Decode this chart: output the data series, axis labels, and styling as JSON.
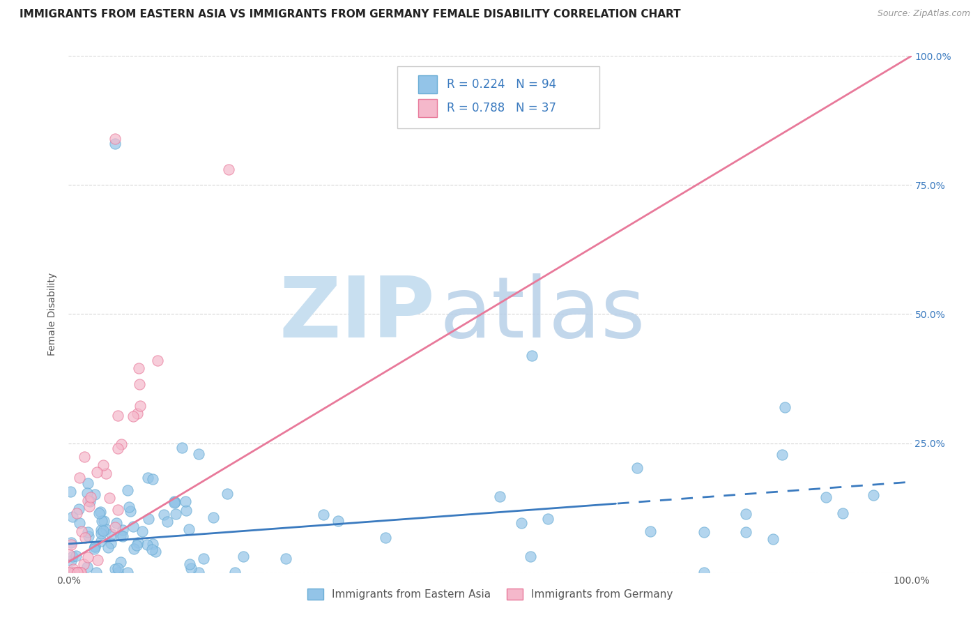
{
  "title": "IMMIGRANTS FROM EASTERN ASIA VS IMMIGRANTS FROM GERMANY FEMALE DISABILITY CORRELATION CHART",
  "source": "Source: ZipAtlas.com",
  "ylabel": "Female Disability",
  "watermark_zip": "ZIP",
  "watermark_atlas": "atlas",
  "xlim": [
    0.0,
    1.0
  ],
  "ylim": [
    0.0,
    1.0
  ],
  "series": [
    {
      "name": "Immigrants from Eastern Asia",
      "R": 0.224,
      "N": 94,
      "color": "#93c4e8",
      "edge_color": "#6aadd5",
      "line_color": "#3a7abf",
      "line_style_solid_end": 0.65,
      "reg_intercept": 0.055,
      "reg_slope": 0.12
    },
    {
      "name": "Immigrants from Germany",
      "R": 0.788,
      "N": 37,
      "color": "#f5b8cb",
      "edge_color": "#e8799a",
      "line_color": "#e8799a",
      "reg_intercept": 0.02,
      "reg_slope": 0.98
    }
  ],
  "legend_blue_color": "#93c4e8",
  "legend_pink_color": "#f5b8cb",
  "legend_text_color": "#3a7abf",
  "legend_text_dark": "#333333",
  "title_fontsize": 11,
  "source_fontsize": 9,
  "tick_fontsize": 10,
  "right_tick_color": "#3a7abf",
  "background_color": "#ffffff",
  "grid_color": "#cccccc",
  "watermark_color": "#c8dff0"
}
